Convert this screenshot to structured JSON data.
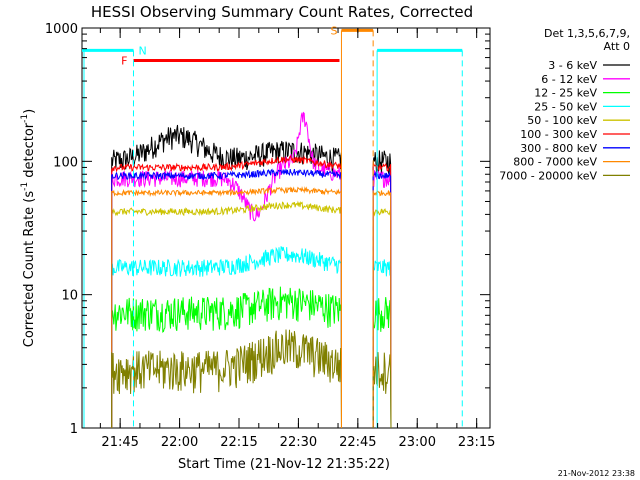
{
  "chart_data": {
    "type": "line",
    "title": "HESSI Observing Summary Count Rates, Corrected",
    "xlabel": "Start Time (21-Nov-12 21:35:22)",
    "ylabel_main": "Corrected Count Rate (s",
    "ylabel_sup1": "-1",
    "ylabel_mid": " detector",
    "ylabel_sup2": "-1",
    "ylabel_end": ")",
    "y_scale": "log",
    "ylim": [
      1,
      1000
    ],
    "xlim_minutes": [
      0,
      103
    ],
    "y_ticks": [
      {
        "v": 1,
        "label": "1"
      },
      {
        "v": 10,
        "label": "10"
      },
      {
        "v": 100,
        "label": "100"
      },
      {
        "v": 1000,
        "label": "1000"
      }
    ],
    "x_ticks": [
      {
        "m": 9.633,
        "label": "21:45"
      },
      {
        "m": 24.633,
        "label": "22:00"
      },
      {
        "m": 39.633,
        "label": "22:15"
      },
      {
        "m": 54.633,
        "label": "22:30"
      },
      {
        "m": 69.633,
        "label": "22:45"
      },
      {
        "m": 84.633,
        "label": "23:00"
      },
      {
        "m": 99.633,
        "label": "23:15"
      }
    ],
    "legend": {
      "title1": "Det 1,3,5,6,7,9,",
      "title2": "Att 0",
      "placement": "top-right"
    },
    "series": [
      {
        "name": "3 - 6 keV",
        "color": "#000000",
        "base": 100,
        "hump": 0.2,
        "noise": 0.07,
        "missing_hump": true
      },
      {
        "name": "6 - 12 keV",
        "color": "#ff00ff",
        "base": 75,
        "hump": 0.35,
        "noise": 0.05,
        "dip": true
      },
      {
        "name": "12 - 25 keV",
        "color": "#00ff00",
        "base": 7.5,
        "hump": 0.2,
        "noise": 0.1
      },
      {
        "name": "25 - 50 keV",
        "color": "#00ffff",
        "base": 16,
        "hump": 0.25,
        "noise": 0.05
      },
      {
        "name": "50 - 100 keV",
        "color": "#ccc300",
        "base": 42,
        "hump": 0.12,
        "noise": 0.02
      },
      {
        "name": "100 - 300 keV",
        "color": "#ff0000",
        "base": 90,
        "hump": 0.15,
        "noise": 0.02
      },
      {
        "name": "300 - 800 keV",
        "color": "#0000ff",
        "base": 78,
        "hump": 0.06,
        "noise": 0.02
      },
      {
        "name": "800 - 7000 keV",
        "color": "#ff8800",
        "base": 58,
        "hump": 0.05,
        "noise": 0.015
      },
      {
        "name": "7000 - 20000 keV",
        "color": "#808000",
        "base": 2.8,
        "hump": 0.45,
        "noise": 0.12
      }
    ],
    "segments": {
      "data1": [
        7.5,
        65.5
      ],
      "data2": [
        73.5,
        78
      ],
      "flag_F": {
        "label": "F",
        "color": "#ff0000",
        "start": 13,
        "end": 65,
        "y": 570
      },
      "flag_S": {
        "label": "S",
        "color": "#ff8800",
        "start": 65.5,
        "end": 73.5,
        "y": 960
      },
      "flag_N": {
        "label": "N",
        "color": "#00ffff",
        "y": 680
      },
      "night": [
        [
          -3,
          13
        ],
        [
          74.5,
          96
        ]
      ]
    },
    "footer_date": "21-Nov-2012 23:38"
  }
}
